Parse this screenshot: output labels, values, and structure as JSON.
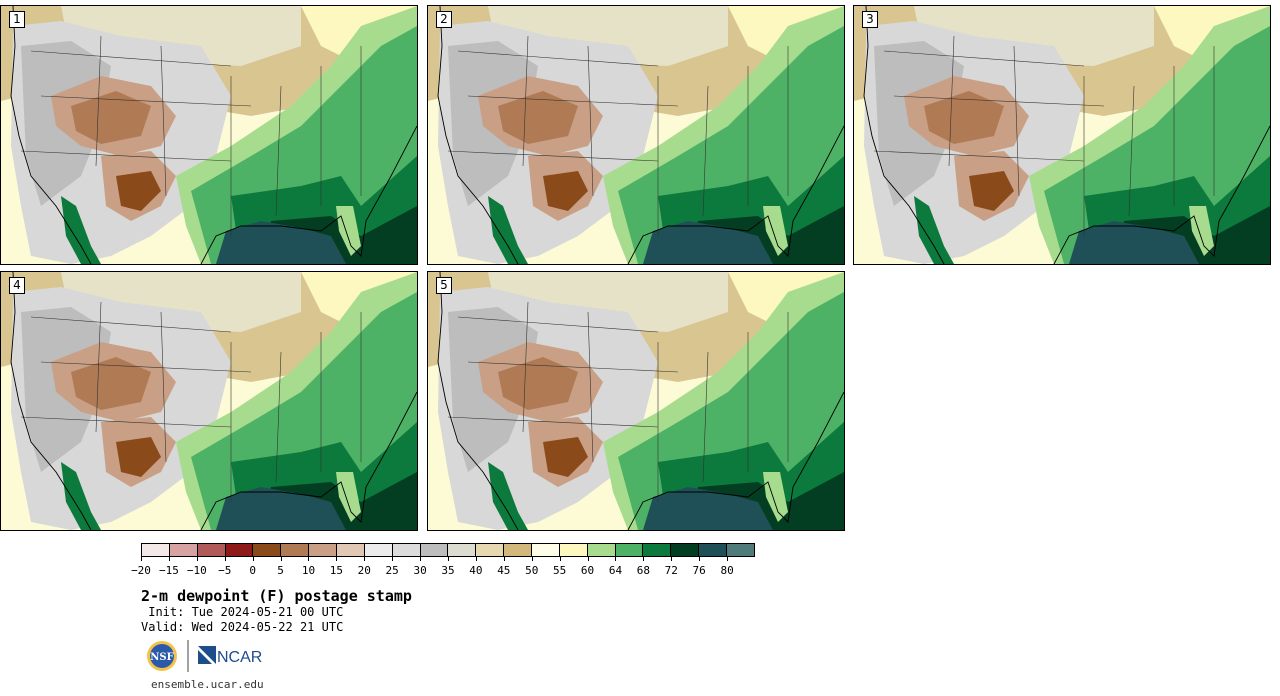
{
  "panels": [
    {
      "label": "1"
    },
    {
      "label": "2"
    },
    {
      "label": "3"
    },
    {
      "label": "4"
    },
    {
      "label": "5"
    }
  ],
  "colorbar": {
    "ticks": [
      "−20",
      "−15",
      "−10",
      "−5",
      "0",
      "5",
      "10",
      "15",
      "20",
      "25",
      "30",
      "35",
      "40",
      "45",
      "50",
      "55",
      "60",
      "64",
      "68",
      "72",
      "76",
      "80"
    ],
    "colors": [
      "#f4e8e8",
      "#d6a2a2",
      "#b05a5a",
      "#8e1a1a",
      "#8a4a1a",
      "#b07a55",
      "#c9a085",
      "#e0c8b4",
      "#ececec",
      "#dcdcdc",
      "#bdbdbd",
      "#dcdcd0",
      "#e6d8b0",
      "#d2b87a",
      "#fefde8",
      "#fcf8c0",
      "#a7dc8e",
      "#4eb266",
      "#0c7a3c",
      "#043e22",
      "#1f5058",
      "#4f7b7b"
    ]
  },
  "title": "2-m dewpoint (F) postage stamp",
  "init": " Init: Tue 2024-05-21 00 UTC",
  "valid": "Valid: Wed 2024-05-22 21 UTC",
  "logos": {
    "nsf": "NSF",
    "ncar": "NCAR"
  },
  "site": "ensemble.ucar.edu"
}
